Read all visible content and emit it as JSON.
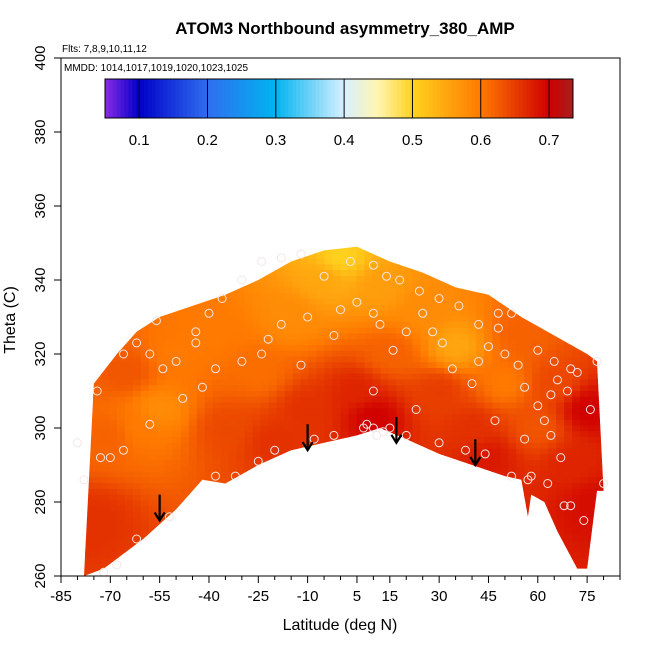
{
  "chart_data": {
    "type": "heatmap",
    "title": "ATOM3 Northbound asymmetry_380_AMP",
    "flights_note": "Flts: 7,8,9,10,11,12",
    "dates_note": "MMDD: 1014,1017,1019,1020,1023,1025",
    "xlabel": "Latitude (deg N)",
    "ylabel": "Theta (C)",
    "xlim": [
      -85,
      85
    ],
    "ylim": [
      260,
      400
    ],
    "x_ticks": [
      -85,
      -70,
      -55,
      -40,
      -25,
      -10,
      5,
      15,
      30,
      45,
      60,
      75
    ],
    "y_ticks": [
      260,
      280,
      300,
      320,
      340,
      360,
      380,
      400
    ],
    "colorbar": {
      "range": [
        0.05,
        0.735
      ],
      "ticks": [
        0.1,
        0.2,
        0.3,
        0.4,
        0.5,
        0.6,
        0.7
      ],
      "stops": [
        {
          "v": 0.05,
          "color": "#8a2be2"
        },
        {
          "v": 0.1,
          "color": "#0000c8"
        },
        {
          "v": 0.2,
          "color": "#2f6ef0"
        },
        {
          "v": 0.3,
          "color": "#00b4f0"
        },
        {
          "v": 0.4,
          "color": "#d8f0ff"
        },
        {
          "v": 0.45,
          "color": "#fff5b0"
        },
        {
          "v": 0.5,
          "color": "#ffd21e"
        },
        {
          "v": 0.6,
          "color": "#ff7a00"
        },
        {
          "v": 0.7,
          "color": "#d00000"
        },
        {
          "v": 0.735,
          "color": "#a51e1e"
        }
      ]
    },
    "region_top": [
      [
        -75,
        312
      ],
      [
        -68,
        320
      ],
      [
        -62,
        326
      ],
      [
        -55,
        330
      ],
      [
        -45,
        333
      ],
      [
        -35,
        336
      ],
      [
        -25,
        340
      ],
      [
        -15,
        345
      ],
      [
        -5,
        348
      ],
      [
        5,
        349
      ],
      [
        15,
        345
      ],
      [
        25,
        342
      ],
      [
        35,
        338
      ],
      [
        45,
        336
      ],
      [
        55,
        330
      ],
      [
        65,
        325
      ],
      [
        75,
        320
      ],
      [
        78,
        318
      ]
    ],
    "region_bottom": [
      [
        -78,
        260
      ],
      [
        -72,
        262
      ],
      [
        -60,
        270
      ],
      [
        -50,
        278
      ],
      [
        -42,
        286
      ],
      [
        -35,
        285
      ],
      [
        -25,
        290
      ],
      [
        -15,
        294
      ],
      [
        -5,
        296
      ],
      [
        5,
        298
      ],
      [
        12,
        300
      ],
      [
        20,
        297
      ],
      [
        30,
        293
      ],
      [
        40,
        290
      ],
      [
        50,
        287
      ],
      [
        55,
        286
      ],
      [
        57,
        276
      ],
      [
        58,
        282
      ],
      [
        62,
        280
      ],
      [
        66,
        272
      ],
      [
        72,
        262
      ],
      [
        75,
        262
      ],
      [
        78,
        283
      ],
      [
        80,
        283
      ]
    ],
    "value_field": [
      {
        "lat": -75,
        "theta": 275,
        "value": 0.66
      },
      {
        "lat": -70,
        "theta": 298,
        "value": 0.62
      },
      {
        "lat": -62,
        "theta": 300,
        "value": 0.6
      },
      {
        "lat": -55,
        "theta": 305,
        "value": 0.58
      },
      {
        "lat": -65,
        "theta": 315,
        "value": 0.63
      },
      {
        "lat": -50,
        "theta": 320,
        "value": 0.6
      },
      {
        "lat": -35,
        "theta": 300,
        "value": 0.64
      },
      {
        "lat": -40,
        "theta": 325,
        "value": 0.6
      },
      {
        "lat": -25,
        "theta": 315,
        "value": 0.61
      },
      {
        "lat": -15,
        "theta": 330,
        "value": 0.58
      },
      {
        "lat": -5,
        "theta": 340,
        "value": 0.55
      },
      {
        "lat": 0,
        "theta": 346,
        "value": 0.5
      },
      {
        "lat": -10,
        "theta": 305,
        "value": 0.66
      },
      {
        "lat": 5,
        "theta": 310,
        "value": 0.67
      },
      {
        "lat": 10,
        "theta": 303,
        "value": 0.7
      },
      {
        "lat": 15,
        "theta": 320,
        "value": 0.62
      },
      {
        "lat": 12,
        "theta": 338,
        "value": 0.56
      },
      {
        "lat": 25,
        "theta": 332,
        "value": 0.58
      },
      {
        "lat": 30,
        "theta": 310,
        "value": 0.65
      },
      {
        "lat": 35,
        "theta": 322,
        "value": 0.55
      },
      {
        "lat": 40,
        "theta": 300,
        "value": 0.66
      },
      {
        "lat": 50,
        "theta": 312,
        "value": 0.6
      },
      {
        "lat": 55,
        "theta": 325,
        "value": 0.62
      },
      {
        "lat": 60,
        "theta": 300,
        "value": 0.63
      },
      {
        "lat": 65,
        "theta": 312,
        "value": 0.64
      },
      {
        "lat": 70,
        "theta": 290,
        "value": 0.67
      },
      {
        "lat": 75,
        "theta": 305,
        "value": 0.7
      },
      {
        "lat": 77,
        "theta": 280,
        "value": 0.69
      },
      {
        "lat": 45,
        "theta": 292,
        "value": 0.68
      },
      {
        "lat": -20,
        "theta": 296,
        "value": 0.66
      }
    ],
    "observations": [
      [
        -72,
        261
      ],
      [
        -68,
        263
      ],
      [
        -62,
        270
      ],
      [
        -52,
        276
      ],
      [
        -38,
        287
      ],
      [
        -32,
        287
      ],
      [
        -25,
        291
      ],
      [
        -20,
        294
      ],
      [
        -8,
        297
      ],
      [
        -2,
        298
      ],
      [
        7,
        300
      ],
      [
        8,
        301
      ],
      [
        10,
        300
      ],
      [
        15,
        300
      ],
      [
        20,
        298
      ],
      [
        30,
        296
      ],
      [
        38,
        294
      ],
      [
        44,
        293
      ],
      [
        52,
        287
      ],
      [
        57,
        286
      ],
      [
        58,
        287
      ],
      [
        63,
        285
      ],
      [
        68,
        279
      ],
      [
        70,
        279
      ],
      [
        74,
        275
      ],
      [
        80,
        285
      ],
      [
        -80,
        296
      ],
      [
        -78,
        286
      ],
      [
        -73,
        292
      ],
      [
        -70,
        292
      ],
      [
        -66,
        294
      ],
      [
        -58,
        301
      ],
      [
        -48,
        308
      ],
      [
        -42,
        311
      ],
      [
        -38,
        316
      ],
      [
        -30,
        318
      ],
      [
        -22,
        324
      ],
      [
        -18,
        328
      ],
      [
        -10,
        330
      ],
      [
        -2,
        325
      ],
      [
        0,
        332
      ],
      [
        5,
        334
      ],
      [
        10,
        331
      ],
      [
        12,
        328
      ],
      [
        16,
        321
      ],
      [
        20,
        326
      ],
      [
        25,
        331
      ],
      [
        28,
        326
      ],
      [
        31,
        323
      ],
      [
        34,
        316
      ],
      [
        40,
        312
      ],
      [
        42,
        318
      ],
      [
        45,
        322
      ],
      [
        48,
        327
      ],
      [
        50,
        320
      ],
      [
        54,
        317
      ],
      [
        56,
        311
      ],
      [
        60,
        306
      ],
      [
        62,
        302
      ],
      [
        64,
        309
      ],
      [
        66,
        313
      ],
      [
        69,
        310
      ],
      [
        72,
        315
      ],
      [
        76,
        305
      ],
      [
        78,
        318
      ],
      [
        -74,
        310
      ],
      [
        -66,
        320
      ],
      [
        -62,
        323
      ],
      [
        -58,
        320
      ],
      [
        -54,
        316
      ],
      [
        -50,
        318
      ],
      [
        -44,
        326
      ],
      [
        -40,
        331
      ],
      [
        -36,
        335
      ],
      [
        -30,
        340
      ],
      [
        -24,
        345
      ],
      [
        -18,
        346
      ],
      [
        -12,
        347
      ],
      [
        -5,
        341
      ],
      [
        3,
        345
      ],
      [
        10,
        344
      ],
      [
        14,
        341
      ],
      [
        18,
        340
      ],
      [
        24,
        337
      ],
      [
        30,
        335
      ],
      [
        36,
        333
      ],
      [
        42,
        328
      ],
      [
        48,
        331
      ],
      [
        52,
        331
      ],
      [
        60,
        321
      ],
      [
        65,
        318
      ],
      [
        70,
        316
      ],
      [
        10,
        310
      ],
      [
        11,
        298
      ],
      [
        13,
        299
      ],
      [
        56,
        297
      ],
      [
        64,
        298
      ],
      [
        67,
        292
      ],
      [
        47,
        302
      ],
      [
        23,
        305
      ],
      [
        -12,
        317
      ],
      [
        -24,
        320
      ],
      [
        -44,
        323
      ],
      [
        -56,
        329
      ]
    ],
    "arrows": [
      {
        "lat": -55,
        "theta_from": 282,
        "theta_to": 275
      },
      {
        "lat": -10,
        "theta_from": 301,
        "theta_to": 294
      },
      {
        "lat": 17,
        "theta_from": 303,
        "theta_to": 296
      },
      {
        "lat": 41,
        "theta_from": 297,
        "theta_to": 290
      }
    ]
  }
}
